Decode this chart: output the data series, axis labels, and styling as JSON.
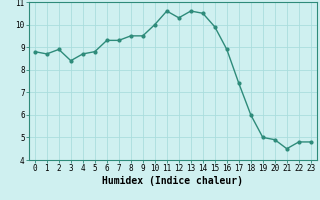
{
  "x": [
    0,
    1,
    2,
    3,
    4,
    5,
    6,
    7,
    8,
    9,
    10,
    11,
    12,
    13,
    14,
    15,
    16,
    17,
    18,
    19,
    20,
    21,
    22,
    23
  ],
  "y": [
    8.8,
    8.7,
    8.9,
    8.4,
    8.7,
    8.8,
    9.3,
    9.3,
    9.5,
    9.5,
    10.0,
    10.6,
    10.3,
    10.6,
    10.5,
    9.9,
    8.9,
    7.4,
    6.0,
    5.0,
    4.9,
    4.5,
    4.8,
    4.8
  ],
  "line_color": "#2e8b7a",
  "marker": "o",
  "marker_size": 2,
  "linewidth": 1.0,
  "bg_color": "#cff0f0",
  "grid_color": "#aadddd",
  "xlabel": "Humidex (Indice chaleur)",
  "xlim": [
    -0.5,
    23.5
  ],
  "ylim": [
    4,
    11
  ],
  "yticks": [
    4,
    5,
    6,
    7,
    8,
    9,
    10,
    11
  ],
  "xticks": [
    0,
    1,
    2,
    3,
    4,
    5,
    6,
    7,
    8,
    9,
    10,
    11,
    12,
    13,
    14,
    15,
    16,
    17,
    18,
    19,
    20,
    21,
    22,
    23
  ],
  "tick_fontsize": 5.5,
  "xlabel_fontsize": 7
}
